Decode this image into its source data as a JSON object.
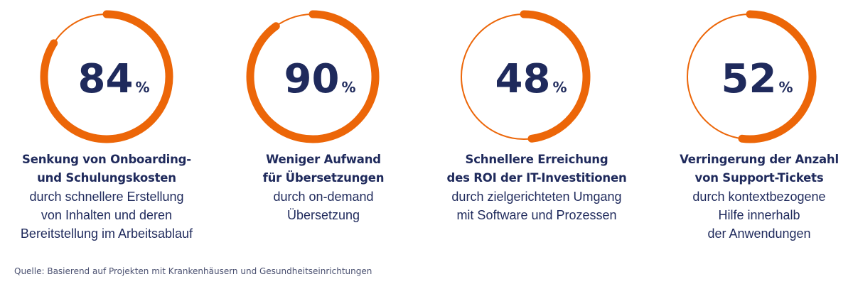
{
  "chart_data": {
    "type": "pie",
    "unit": "%",
    "values": [
      84,
      90,
      48,
      52
    ],
    "colors": {
      "accent": "#ec6608",
      "text": "#1f2a5c"
    }
  },
  "items": [
    {
      "value": "84",
      "unit": "%",
      "bold": [
        "Senkung von Onboarding-",
        "und Schulungskosten"
      ],
      "text": [
        "durch schnellere Erstellung",
        "von Inhalten und deren",
        "Bereitstellung im Arbeitsablauf"
      ]
    },
    {
      "value": "90",
      "unit": "%",
      "bold": [
        "Weniger Aufwand",
        "für Übersetzungen"
      ],
      "text": [
        "durch on-demand",
        "Übersetzung"
      ]
    },
    {
      "value": "48",
      "unit": "%",
      "bold": [
        "Schnellere Erreichung",
        "des ROI der IT-Investitionen"
      ],
      "text": [
        "durch zielgerichteten Umgang",
        "mit Software und Prozessen"
      ]
    },
    {
      "value": "52",
      "unit": "%",
      "bold": [
        "Verringerung der Anzahl",
        "von Support-Tickets"
      ],
      "text": [
        "durch kontextbezogene",
        "Hilfe innerhalb",
        "der Anwendungen"
      ]
    }
  ],
  "source": "Quelle: Basierend auf Projekten mit Krankenhäusern und Gesundheitseinrichtungen"
}
